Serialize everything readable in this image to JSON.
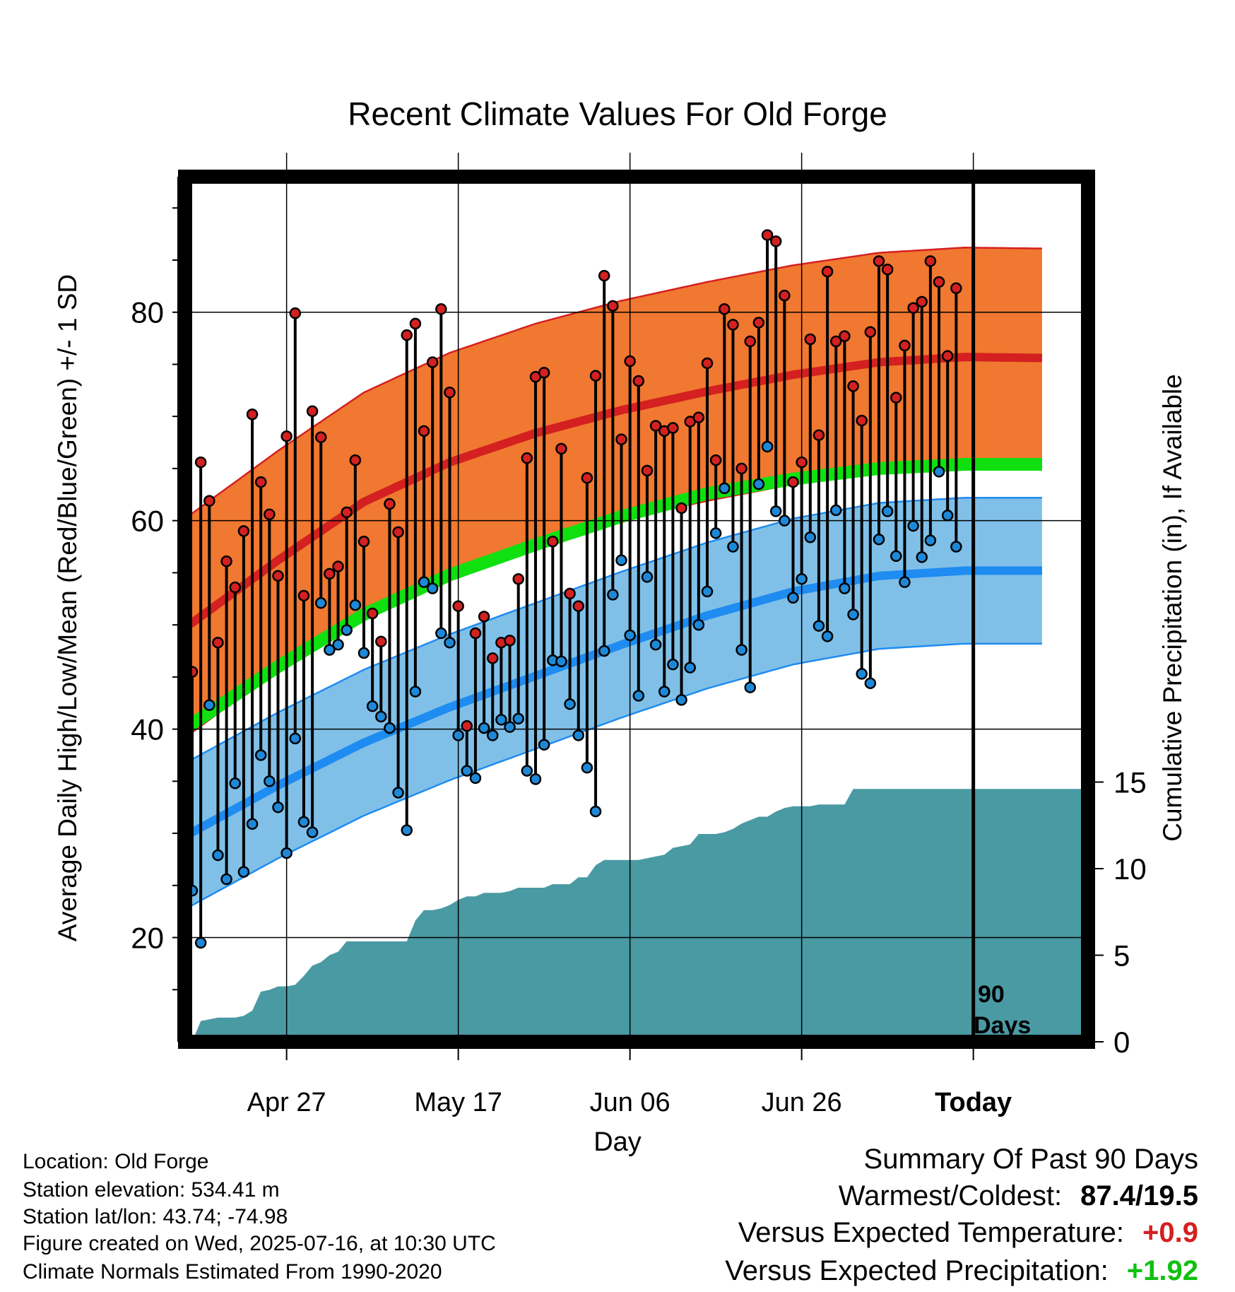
{
  "chart_data": {
    "type": "line",
    "title": "Recent Climate Values For Old Forge",
    "xlabel": "Day",
    "ylabel": "Average Daily High/Low/Mean (Red/Blue/Green) +/- 1 SD",
    "y2label": "Cumulative Precipitation (in), If Available",
    "ylim": [
      10,
      93
    ],
    "y2lim": [
      0,
      30
    ],
    "yticks": [
      20,
      40,
      60,
      80
    ],
    "y2ticks": [
      0,
      5,
      10,
      15
    ],
    "x_tick_labels": [
      "Apr 27",
      "May 17",
      "Jun 06",
      "Jun 26",
      "Today"
    ],
    "x_tick_days": [
      11,
      31,
      51,
      71,
      91
    ],
    "today_label": "90 Days",
    "grid": true,
    "colors": {
      "high_band": "#f07830",
      "high_mean": "#d42020",
      "low_band": "#80c0e8",
      "low_mean": "#1e8cf0",
      "mean": "#10e010",
      "precip": "#4a9aa4",
      "high_point": "#d42020",
      "low_point": "#1e88d8"
    },
    "normals": {
      "days": [
        0,
        10,
        20,
        30,
        40,
        50,
        60,
        70,
        80,
        90,
        100
      ],
      "high": [
        50.2,
        56.2,
        61.8,
        65.6,
        68.4,
        70.6,
        72.4,
        74.0,
        75.2,
        75.7,
        75.6
      ],
      "high_sd": 10.5,
      "low": [
        30.1,
        34.6,
        38.7,
        42.1,
        45.1,
        48.1,
        50.9,
        53.2,
        54.7,
        55.2,
        55.2
      ],
      "low_sd": 7.0,
      "mean": [
        40.5,
        46.0,
        51.0,
        54.8,
        57.7,
        60.4,
        62.6,
        64.0,
        65.0,
        65.4,
        65.4
      ]
    },
    "daily_high": [
      45.5,
      65.6,
      61.9,
      48.3,
      56.1,
      53.6,
      59.0,
      70.2,
      63.7,
      60.6,
      54.7,
      68.1,
      79.9,
      52.8,
      70.5,
      68.0,
      54.9,
      55.6,
      60.8,
      65.8,
      58.0,
      51.1,
      48.4,
      61.6,
      58.9,
      77.8,
      78.9,
      68.6,
      75.2,
      80.3,
      72.3,
      51.8,
      40.3,
      49.2,
      50.8,
      46.8,
      48.3,
      48.5,
      54.4,
      66.0,
      73.8,
      74.2,
      58.0,
      66.9,
      53.0,
      51.8,
      64.1,
      73.9,
      83.5,
      80.6,
      67.8,
      75.3,
      73.4,
      64.8,
      69.1,
      68.6,
      68.9,
      61.2,
      69.5,
      69.9,
      75.1,
      65.8,
      80.3,
      78.8,
      65.0,
      77.2,
      79.0,
      87.4,
      86.8,
      81.6,
      63.7,
      65.6,
      77.4,
      68.2,
      83.9,
      77.2,
      77.7,
      72.9,
      69.6,
      78.1,
      84.9,
      84.1,
      71.8,
      76.8,
      80.4,
      81.0,
      84.9,
      82.9,
      75.8,
      82.3
    ],
    "daily_low": [
      24.5,
      19.5,
      42.3,
      27.9,
      25.6,
      34.8,
      26.3,
      30.9,
      37.5,
      35.0,
      32.5,
      28.1,
      39.1,
      31.1,
      30.1,
      52.1,
      47.6,
      48.1,
      49.5,
      51.9,
      47.3,
      42.2,
      41.2,
      40.1,
      33.9,
      30.3,
      43.6,
      54.1,
      53.5,
      49.2,
      48.3,
      39.4,
      36.0,
      35.3,
      40.1,
      39.4,
      40.9,
      40.2,
      41.0,
      36.0,
      35.2,
      38.5,
      46.6,
      46.5,
      42.4,
      39.4,
      36.3,
      32.1,
      47.5,
      52.9,
      56.2,
      49.0,
      43.2,
      54.6,
      48.1,
      43.6,
      46.2,
      42.8,
      45.9,
      50.0,
      53.2,
      58.8,
      63.1,
      57.5,
      47.6,
      44.0,
      63.5,
      67.1,
      60.9,
      60.0,
      52.6,
      54.4,
      58.4,
      49.9,
      48.9,
      61.0,
      53.5,
      51.0,
      45.3,
      44.4,
      58.2,
      60.9,
      56.6,
      54.1,
      59.5,
      56.5,
      58.1,
      64.7,
      60.5,
      57.5
    ],
    "precip_cum": [
      0.0,
      1.2,
      1.3,
      1.4,
      1.4,
      1.4,
      1.5,
      1.8,
      2.9,
      3.0,
      3.2,
      3.2,
      3.3,
      3.8,
      4.4,
      4.6,
      5.0,
      5.2,
      5.8,
      5.8,
      5.8,
      5.8,
      5.8,
      5.8,
      5.8,
      5.8,
      7.0,
      7.6,
      7.6,
      7.7,
      7.9,
      8.2,
      8.4,
      8.4,
      8.6,
      8.6,
      8.6,
      8.7,
      8.9,
      8.9,
      8.9,
      8.9,
      9.1,
      9.1,
      9.1,
      9.5,
      9.5,
      10.2,
      10.5,
      10.5,
      10.5,
      10.5,
      10.5,
      10.6,
      10.7,
      10.8,
      11.2,
      11.3,
      11.4,
      12.0,
      12.0,
      12.0,
      12.1,
      12.3,
      12.6,
      12.8,
      13.0,
      13.0,
      13.3,
      13.5,
      13.6,
      13.6,
      13.6,
      13.7,
      13.7,
      13.7,
      13.7,
      14.6,
      14.6,
      14.6,
      14.6,
      14.6,
      14.6,
      14.6,
      14.6,
      14.6,
      14.6,
      14.6,
      14.6,
      14.6
    ]
  },
  "info": {
    "location": "Location: Old Forge",
    "elevation": "Station elevation: 534.41 m",
    "latlon": "Station lat/lon: 43.74; -74.98",
    "created": "Figure created on Wed, 2025-07-16, at 10:30 UTC",
    "normals": "Climate Normals Estimated From 1990-2020"
  },
  "summary": {
    "heading": "Summary Of Past 90 Days",
    "warmest_label": "Warmest/Coldest:",
    "warmest_value": "87.4/19.5",
    "temp_label": "Versus Expected Temperature:",
    "temp_value": "+0.9",
    "temp_color": "#d42020",
    "precip_label": "Versus Expected Precipitation:",
    "precip_value": "+1.92",
    "precip_color": "#10c010"
  }
}
